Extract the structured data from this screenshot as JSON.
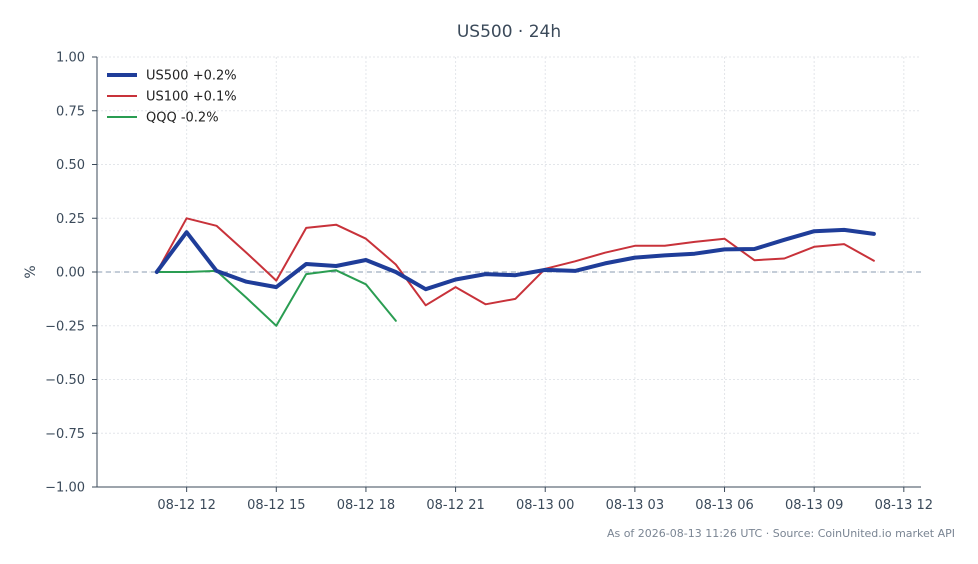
{
  "chart_data": {
    "type": "line",
    "title": "US500 · 24h",
    "xlabel": "",
    "ylabel": "%",
    "ylim": [
      -1.0,
      1.0
    ],
    "xlim": [
      0,
      1000
    ],
    "grid": true,
    "legend_position": "top-left",
    "y_ticks": [
      {
        "value": 1.0,
        "label": "1.00"
      },
      {
        "value": 0.75,
        "label": "0.75"
      },
      {
        "value": 0.5,
        "label": "0.50"
      },
      {
        "value": 0.25,
        "label": "0.25"
      },
      {
        "value": 0.0,
        "label": "0.00"
      },
      {
        "value": -0.25,
        "label": "−0.25"
      },
      {
        "value": -0.5,
        "label": "−0.50"
      },
      {
        "value": -0.75,
        "label": "−0.75"
      },
      {
        "value": -1.0,
        "label": "−1.00"
      }
    ],
    "x_ticks": [
      {
        "value": 120,
        "label": "08-12 12"
      },
      {
        "value": 240,
        "label": "08-12 15"
      },
      {
        "value": 360,
        "label": "08-12 18"
      },
      {
        "value": 480,
        "label": "08-12 21"
      },
      {
        "value": 600,
        "label": "08-13 00"
      },
      {
        "value": 720,
        "label": "08-13 03"
      },
      {
        "value": 840,
        "label": "08-13 06"
      },
      {
        "value": 960,
        "label": "08-13 09"
      },
      {
        "value": 1080,
        "label": "08-13 12"
      }
    ],
    "series": [
      {
        "name": "US500 +0.2%",
        "color": "#1f3d99",
        "width": 4,
        "x": [
          80,
          120,
          160,
          200,
          240,
          280,
          320,
          360,
          400,
          440,
          480,
          520,
          560,
          600,
          640,
          680,
          720,
          760,
          800,
          840,
          880,
          920,
          960,
          1000,
          1040
        ],
        "y": [
          0.0,
          0.185,
          0.005,
          -0.045,
          -0.07,
          0.037,
          0.028,
          0.056,
          0.0,
          -0.08,
          -0.035,
          -0.01,
          -0.015,
          0.01,
          0.005,
          0.04,
          0.067,
          0.077,
          0.085,
          0.105,
          0.107,
          0.15,
          0.19,
          0.196,
          0.177
        ]
      },
      {
        "name": "US100 +0.1%",
        "color": "#c8323a",
        "width": 2,
        "x": [
          80,
          120,
          160,
          200,
          240,
          280,
          320,
          360,
          400,
          440,
          480,
          520,
          560,
          600,
          640,
          680,
          720,
          760,
          800,
          840,
          880,
          920,
          960,
          1000,
          1040
        ],
        "y": [
          0.0,
          0.25,
          0.215,
          0.09,
          -0.04,
          0.205,
          0.22,
          0.155,
          0.035,
          -0.155,
          -0.07,
          -0.15,
          -0.125,
          0.015,
          0.05,
          0.09,
          0.122,
          0.122,
          0.14,
          0.155,
          0.055,
          0.063,
          0.117,
          0.13,
          0.052
        ]
      },
      {
        "name": "QQQ -0.2%",
        "color": "#2a9d52",
        "width": 2,
        "x": [
          80,
          120,
          160,
          200,
          240,
          280,
          320,
          360,
          400
        ],
        "y": [
          0.0,
          0.0,
          0.005,
          -0.12,
          -0.25,
          -0.01,
          0.008,
          -0.057,
          -0.227
        ]
      }
    ]
  },
  "footer": "As of 2026-08-13 11:26 UTC · Source: CoinUnited.io market API"
}
